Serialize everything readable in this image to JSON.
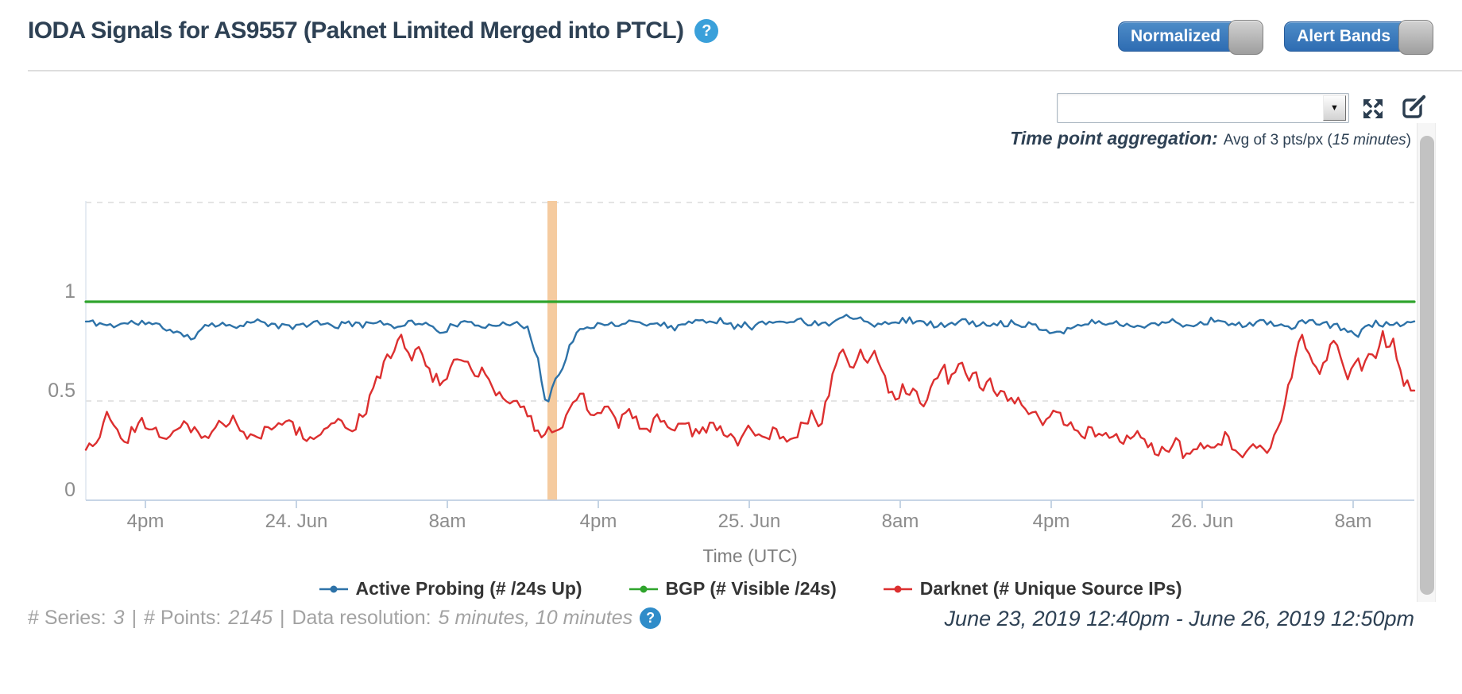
{
  "header": {
    "title": "IODA Signals for AS9557 (Paknet Limited Merged into PTCL)",
    "toggles": {
      "normalized": {
        "label": "Normalized",
        "on": true
      },
      "alert_bands": {
        "label": "Alert Bands",
        "on": true
      }
    }
  },
  "icons": {
    "help_glyph": "?",
    "dropdown_arrow": "▼"
  },
  "toolbar": {
    "dropdown_value": "",
    "aggregation": {
      "label": "Time point aggregation:",
      "prefix": "Avg of 3 pts/px (",
      "em": "15 minutes",
      "suffix": ")"
    }
  },
  "chart_data": {
    "type": "line",
    "title": "",
    "xlabel": "Time (UTC)",
    "x_range_label": "June 23, 2019 12:40pm - June 26, 2019 12:50pm",
    "x_ticks": [
      "4pm",
      "24. Jun",
      "8am",
      "4pm",
      "25. Jun",
      "8am",
      "4pm",
      "26. Jun",
      "8am"
    ],
    "y_ticks": [
      {
        "label": "1",
        "value": 1
      },
      {
        "label": "0.5",
        "value": 0.5
      },
      {
        "label": "0",
        "value": 0
      }
    ],
    "ylim": [
      0,
      1.66
    ],
    "gridline_values": [
      1.5,
      1.0,
      0.5
    ],
    "grid": "dashed-horizontal",
    "legend_position": "bottom",
    "alert_band": {
      "x_frac_start": 0.3475,
      "x_frac_end": 0.3547,
      "color": "#f5cb9f"
    },
    "series": [
      {
        "name": "Active Probing (# /24s Up)",
        "color": "#2d72a8",
        "width": 2.4,
        "noise": 0.016,
        "seed": 11,
        "points": [
          [
            0,
            0.9
          ],
          [
            0.02,
            0.88
          ],
          [
            0.04,
            0.9
          ],
          [
            0.06,
            0.87
          ],
          [
            0.079,
            0.81
          ],
          [
            0.09,
            0.89
          ],
          [
            0.11,
            0.88
          ],
          [
            0.13,
            0.9
          ],
          [
            0.15,
            0.87
          ],
          [
            0.17,
            0.89
          ],
          [
            0.19,
            0.88
          ],
          [
            0.21,
            0.9
          ],
          [
            0.23,
            0.88
          ],
          [
            0.25,
            0.9
          ],
          [
            0.267,
            0.85
          ],
          [
            0.28,
            0.89
          ],
          [
            0.3,
            0.88
          ],
          [
            0.315,
            0.9
          ],
          [
            0.332,
            0.87
          ],
          [
            0.34,
            0.72
          ],
          [
            0.347,
            0.47
          ],
          [
            0.3525,
            0.6
          ],
          [
            0.357,
            0.63
          ],
          [
            0.365,
            0.8
          ],
          [
            0.372,
            0.85
          ],
          [
            0.385,
            0.88
          ],
          [
            0.41,
            0.9
          ],
          [
            0.44,
            0.88
          ],
          [
            0.47,
            0.91
          ],
          [
            0.5,
            0.88
          ],
          [
            0.53,
            0.91
          ],
          [
            0.55,
            0.89
          ],
          [
            0.575,
            0.93
          ],
          [
            0.6,
            0.89
          ],
          [
            0.62,
            0.91
          ],
          [
            0.64,
            0.88
          ],
          [
            0.66,
            0.9
          ],
          [
            0.68,
            0.88
          ],
          [
            0.7,
            0.9
          ],
          [
            0.72,
            0.87
          ],
          [
            0.73,
            0.84
          ],
          [
            0.75,
            0.89
          ],
          [
            0.77,
            0.9
          ],
          [
            0.79,
            0.87
          ],
          [
            0.81,
            0.9
          ],
          [
            0.83,
            0.88
          ],
          [
            0.85,
            0.91
          ],
          [
            0.87,
            0.88
          ],
          [
            0.89,
            0.9
          ],
          [
            0.905,
            0.87
          ],
          [
            0.92,
            0.9
          ],
          [
            0.94,
            0.88
          ],
          [
            0.955,
            0.84
          ],
          [
            0.97,
            0.89
          ],
          [
            0.985,
            0.88
          ],
          [
            1,
            0.89
          ]
        ]
      },
      {
        "name": "BGP (# Visible /24s)",
        "color": "#2fa42c",
        "width": 3.2,
        "noise": 0,
        "seed": 1,
        "points": [
          [
            0,
            1.0
          ],
          [
            1,
            1.0
          ]
        ]
      },
      {
        "name": "Darknet (# Unique Source IPs)",
        "color": "#dc2f2f",
        "width": 2.4,
        "noise": 0.03,
        "seed": 97,
        "points": [
          [
            0,
            0.25
          ],
          [
            0.008,
            0.3
          ],
          [
            0.015,
            0.4
          ],
          [
            0.025,
            0.34
          ],
          [
            0.03,
            0.27
          ],
          [
            0.04,
            0.4
          ],
          [
            0.05,
            0.37
          ],
          [
            0.06,
            0.32
          ],
          [
            0.07,
            0.39
          ],
          [
            0.08,
            0.35
          ],
          [
            0.09,
            0.31
          ],
          [
            0.1,
            0.38
          ],
          [
            0.11,
            0.4
          ],
          [
            0.12,
            0.34
          ],
          [
            0.13,
            0.32
          ],
          [
            0.14,
            0.37
          ],
          [
            0.15,
            0.41
          ],
          [
            0.16,
            0.35
          ],
          [
            0.17,
            0.3
          ],
          [
            0.18,
            0.37
          ],
          [
            0.19,
            0.42
          ],
          [
            0.2,
            0.36
          ],
          [
            0.21,
            0.44
          ],
          [
            0.218,
            0.58
          ],
          [
            0.228,
            0.72
          ],
          [
            0.236,
            0.83
          ],
          [
            0.244,
            0.7
          ],
          [
            0.252,
            0.78
          ],
          [
            0.26,
            0.63
          ],
          [
            0.268,
            0.6
          ],
          [
            0.276,
            0.68
          ],
          [
            0.284,
            0.73
          ],
          [
            0.292,
            0.62
          ],
          [
            0.3,
            0.66
          ],
          [
            0.308,
            0.55
          ],
          [
            0.318,
            0.52
          ],
          [
            0.328,
            0.46
          ],
          [
            0.336,
            0.4
          ],
          [
            0.343,
            0.3
          ],
          [
            0.349,
            0.35
          ],
          [
            0.354,
            0.32
          ],
          [
            0.36,
            0.4
          ],
          [
            0.366,
            0.5
          ],
          [
            0.372,
            0.55
          ],
          [
            0.378,
            0.46
          ],
          [
            0.385,
            0.42
          ],
          [
            0.392,
            0.48
          ],
          [
            0.4,
            0.38
          ],
          [
            0.41,
            0.44
          ],
          [
            0.42,
            0.36
          ],
          [
            0.43,
            0.41
          ],
          [
            0.44,
            0.35
          ],
          [
            0.45,
            0.39
          ],
          [
            0.46,
            0.33
          ],
          [
            0.47,
            0.38
          ],
          [
            0.48,
            0.34
          ],
          [
            0.49,
            0.3
          ],
          [
            0.5,
            0.36
          ],
          [
            0.51,
            0.31
          ],
          [
            0.52,
            0.35
          ],
          [
            0.53,
            0.3
          ],
          [
            0.54,
            0.38
          ],
          [
            0.548,
            0.45
          ],
          [
            0.553,
            0.38
          ],
          [
            0.558,
            0.5
          ],
          [
            0.562,
            0.62
          ],
          [
            0.565,
            0.7
          ],
          [
            0.57,
            0.76
          ],
          [
            0.575,
            0.65
          ],
          [
            0.58,
            0.72
          ],
          [
            0.585,
            0.77
          ],
          [
            0.59,
            0.68
          ],
          [
            0.595,
            0.74
          ],
          [
            0.6,
            0.62
          ],
          [
            0.605,
            0.55
          ],
          [
            0.61,
            0.5
          ],
          [
            0.615,
            0.6
          ],
          [
            0.62,
            0.52
          ],
          [
            0.625,
            0.57
          ],
          [
            0.63,
            0.48
          ],
          [
            0.635,
            0.55
          ],
          [
            0.64,
            0.62
          ],
          [
            0.645,
            0.68
          ],
          [
            0.65,
            0.58
          ],
          [
            0.655,
            0.65
          ],
          [
            0.66,
            0.7
          ],
          [
            0.665,
            0.62
          ],
          [
            0.67,
            0.66
          ],
          [
            0.675,
            0.55
          ],
          [
            0.68,
            0.6
          ],
          [
            0.685,
            0.52
          ],
          [
            0.69,
            0.56
          ],
          [
            0.695,
            0.48
          ],
          [
            0.7,
            0.52
          ],
          [
            0.71,
            0.45
          ],
          [
            0.72,
            0.4
          ],
          [
            0.73,
            0.44
          ],
          [
            0.74,
            0.37
          ],
          [
            0.75,
            0.33
          ],
          [
            0.76,
            0.37
          ],
          [
            0.77,
            0.31
          ],
          [
            0.78,
            0.28
          ],
          [
            0.79,
            0.33
          ],
          [
            0.8,
            0.27
          ],
          [
            0.81,
            0.25
          ],
          [
            0.82,
            0.29
          ],
          [
            0.83,
            0.24
          ],
          [
            0.84,
            0.28
          ],
          [
            0.85,
            0.25
          ],
          [
            0.86,
            0.3
          ],
          [
            0.87,
            0.22
          ],
          [
            0.88,
            0.28
          ],
          [
            0.89,
            0.26
          ],
          [
            0.895,
            0.32
          ],
          [
            0.9,
            0.42
          ],
          [
            0.906,
            0.6
          ],
          [
            0.912,
            0.78
          ],
          [
            0.917,
            0.85
          ],
          [
            0.923,
            0.72
          ],
          [
            0.93,
            0.65
          ],
          [
            0.935,
            0.75
          ],
          [
            0.94,
            0.8
          ],
          [
            0.945,
            0.68
          ],
          [
            0.95,
            0.62
          ],
          [
            0.955,
            0.72
          ],
          [
            0.96,
            0.67
          ],
          [
            0.965,
            0.75
          ],
          [
            0.97,
            0.7
          ],
          [
            0.975,
            0.83
          ],
          [
            0.98,
            0.78
          ],
          [
            0.985,
            0.8
          ],
          [
            0.99,
            0.62
          ],
          [
            0.995,
            0.58
          ],
          [
            1,
            0.55
          ]
        ]
      }
    ]
  },
  "footer": {
    "stats": {
      "series_label": "# Series:",
      "series_value": "3",
      "separator": "|",
      "points_label": "# Points:",
      "points_value": "2145",
      "resolution_label": "Data resolution:",
      "resolution_value": "5 minutes, 10 minutes"
    },
    "date_range": "June 23, 2019 12:40pm - June 26, 2019 12:50pm"
  }
}
